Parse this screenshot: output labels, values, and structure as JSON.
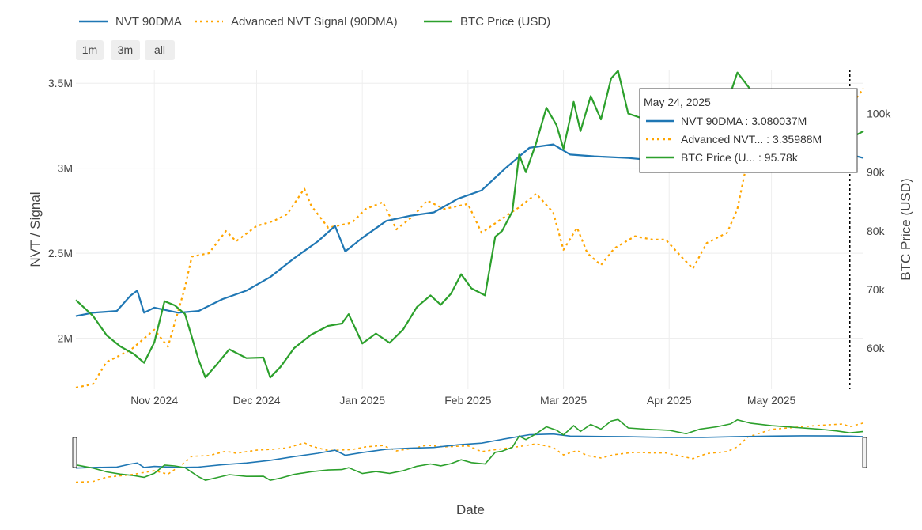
{
  "range_buttons": [
    "1m",
    "3m",
    "all"
  ],
  "chart_data": {
    "type": "line",
    "xlabel": "Date",
    "ylabel": "NVT / Signal",
    "y2label": "BTC Price (USD)",
    "x_range": [
      "2024-10-09",
      "2025-05-28"
    ],
    "y_range": [
      1700000,
      3580000
    ],
    "y2_range": [
      53000,
      107500
    ],
    "x_ticks": [
      {
        "date": "2024-11-01",
        "label": "Nov 2024"
      },
      {
        "date": "2024-12-01",
        "label": "Dec 2024"
      },
      {
        "date": "2025-01-01",
        "label": "Jan 2025"
      },
      {
        "date": "2025-02-01",
        "label": "Feb 2025"
      },
      {
        "date": "2025-03-01",
        "label": "Mar 2025"
      },
      {
        "date": "2025-04-01",
        "label": "Apr 2025"
      },
      {
        "date": "2025-05-01",
        "label": "May 2025"
      }
    ],
    "y_ticks": [
      {
        "value": 2000000,
        "label": "2M"
      },
      {
        "value": 2500000,
        "label": "2.5M"
      },
      {
        "value": 3000000,
        "label": "3M"
      },
      {
        "value": 3500000,
        "label": "3.5M"
      }
    ],
    "y2_ticks": [
      {
        "value": 60000,
        "label": "60k"
      },
      {
        "value": 70000,
        "label": "70k"
      },
      {
        "value": 80000,
        "label": "80k"
      },
      {
        "value": 90000,
        "label": "90k"
      },
      {
        "value": 100000,
        "label": "100k"
      }
    ],
    "legend_position": "top-left",
    "grid": true,
    "series": [
      {
        "name": "NVT 90DMA",
        "axis": "y",
        "color": "#1f77b4",
        "dash": "solid",
        "points": [
          [
            "2024-10-09",
            2130000
          ],
          [
            "2024-10-14",
            2150000
          ],
          [
            "2024-10-21",
            2160000
          ],
          [
            "2024-10-25",
            2250000
          ],
          [
            "2024-10-27",
            2280000
          ],
          [
            "2024-10-29",
            2150000
          ],
          [
            "2024-11-01",
            2180000
          ],
          [
            "2024-11-08",
            2150000
          ],
          [
            "2024-11-14",
            2160000
          ],
          [
            "2024-11-21",
            2230000
          ],
          [
            "2024-11-28",
            2280000
          ],
          [
            "2024-12-05",
            2360000
          ],
          [
            "2024-12-12",
            2470000
          ],
          [
            "2024-12-19",
            2570000
          ],
          [
            "2024-12-24",
            2660000
          ],
          [
            "2024-12-27",
            2510000
          ],
          [
            "2025-01-01",
            2590000
          ],
          [
            "2025-01-08",
            2690000
          ],
          [
            "2025-01-15",
            2720000
          ],
          [
            "2025-01-22",
            2740000
          ],
          [
            "2025-01-29",
            2820000
          ],
          [
            "2025-02-05",
            2870000
          ],
          [
            "2025-02-12",
            3000000
          ],
          [
            "2025-02-19",
            3120000
          ],
          [
            "2025-02-26",
            3140000
          ],
          [
            "2025-03-03",
            3080000
          ],
          [
            "2025-03-10",
            3070000
          ],
          [
            "2025-03-20",
            3060000
          ],
          [
            "2025-03-31",
            3040000
          ],
          [
            "2025-04-10",
            3040000
          ],
          [
            "2025-04-20",
            3060000
          ],
          [
            "2025-05-01",
            3080000
          ],
          [
            "2025-05-10",
            3090000
          ],
          [
            "2025-05-20",
            3085000
          ],
          [
            "2025-05-24",
            3080037
          ],
          [
            "2025-05-28",
            3060000
          ]
        ]
      },
      {
        "name": "Advanced NVT Signal (90DMA)",
        "axis": "y",
        "color": "#ffa500",
        "dash": "dot",
        "points": [
          [
            "2024-10-09",
            1710000
          ],
          [
            "2024-10-14",
            1730000
          ],
          [
            "2024-10-18",
            1860000
          ],
          [
            "2024-10-25",
            1930000
          ],
          [
            "2024-11-01",
            2050000
          ],
          [
            "2024-11-05",
            1950000
          ],
          [
            "2024-11-10",
            2300000
          ],
          [
            "2024-11-12",
            2480000
          ],
          [
            "2024-11-17",
            2500000
          ],
          [
            "2024-11-22",
            2630000
          ],
          [
            "2024-11-25",
            2570000
          ],
          [
            "2024-12-01",
            2660000
          ],
          [
            "2024-12-06",
            2690000
          ],
          [
            "2024-12-10",
            2730000
          ],
          [
            "2024-12-15",
            2880000
          ],
          [
            "2024-12-17",
            2780000
          ],
          [
            "2024-12-22",
            2650000
          ],
          [
            "2024-12-29",
            2680000
          ],
          [
            "2025-01-02",
            2760000
          ],
          [
            "2025-01-07",
            2800000
          ],
          [
            "2025-01-11",
            2640000
          ],
          [
            "2025-01-16",
            2720000
          ],
          [
            "2025-01-20",
            2810000
          ],
          [
            "2025-01-25",
            2760000
          ],
          [
            "2025-02-01",
            2790000
          ],
          [
            "2025-02-05",
            2620000
          ],
          [
            "2025-02-10",
            2690000
          ],
          [
            "2025-02-16",
            2770000
          ],
          [
            "2025-02-21",
            2850000
          ],
          [
            "2025-02-26",
            2740000
          ],
          [
            "2025-03-01",
            2520000
          ],
          [
            "2025-03-05",
            2650000
          ],
          [
            "2025-03-08",
            2500000
          ],
          [
            "2025-03-12",
            2430000
          ],
          [
            "2025-03-16",
            2530000
          ],
          [
            "2025-03-22",
            2600000
          ],
          [
            "2025-03-27",
            2580000
          ],
          [
            "2025-03-31",
            2580000
          ],
          [
            "2025-04-05",
            2470000
          ],
          [
            "2025-04-08",
            2410000
          ],
          [
            "2025-04-12",
            2560000
          ],
          [
            "2025-04-18",
            2620000
          ],
          [
            "2025-04-21",
            2760000
          ],
          [
            "2025-04-24",
            3050000
          ],
          [
            "2025-05-01",
            3280000
          ],
          [
            "2025-05-08",
            3340000
          ],
          [
            "2025-05-15",
            3400000
          ],
          [
            "2025-05-22",
            3440000
          ],
          [
            "2025-05-24",
            3359880
          ],
          [
            "2025-05-28",
            3470000
          ]
        ]
      },
      {
        "name": "BTC Price (USD)",
        "axis": "y2",
        "color": "#2ca02c",
        "dash": "solid",
        "points": [
          [
            "2024-10-09",
            68200
          ],
          [
            "2024-10-14",
            65500
          ],
          [
            "2024-10-18",
            62200
          ],
          [
            "2024-10-22",
            60300
          ],
          [
            "2024-10-26",
            59000
          ],
          [
            "2024-10-29",
            57500
          ],
          [
            "2024-11-01",
            61000
          ],
          [
            "2024-11-04",
            68000
          ],
          [
            "2024-11-07",
            67300
          ],
          [
            "2024-11-10",
            65800
          ],
          [
            "2024-11-14",
            58000
          ],
          [
            "2024-11-16",
            55000
          ],
          [
            "2024-11-19",
            57000
          ],
          [
            "2024-11-23",
            59800
          ],
          [
            "2024-11-28",
            58300
          ],
          [
            "2024-12-03",
            58400
          ],
          [
            "2024-12-05",
            55000
          ],
          [
            "2024-12-08",
            56800
          ],
          [
            "2024-12-12",
            60000
          ],
          [
            "2024-12-17",
            62300
          ],
          [
            "2024-12-22",
            63800
          ],
          [
            "2024-12-26",
            64200
          ],
          [
            "2024-12-28",
            65800
          ],
          [
            "2025-01-01",
            60800
          ],
          [
            "2025-01-05",
            62500
          ],
          [
            "2025-01-09",
            60900
          ],
          [
            "2025-01-13",
            63200
          ],
          [
            "2025-01-17",
            67000
          ],
          [
            "2025-01-21",
            69000
          ],
          [
            "2025-01-24",
            67400
          ],
          [
            "2025-01-27",
            69300
          ],
          [
            "2025-01-30",
            72600
          ],
          [
            "2025-02-02",
            70200
          ],
          [
            "2025-02-06",
            69000
          ],
          [
            "2025-02-09",
            79000
          ],
          [
            "2025-02-11",
            80000
          ],
          [
            "2025-02-14",
            83300
          ],
          [
            "2025-02-16",
            93000
          ],
          [
            "2025-02-18",
            90000
          ],
          [
            "2025-02-21",
            95000
          ],
          [
            "2025-02-24",
            101000
          ],
          [
            "2025-02-27",
            98000
          ],
          [
            "2025-03-01",
            94000
          ],
          [
            "2025-03-04",
            102000
          ],
          [
            "2025-03-06",
            97000
          ],
          [
            "2025-03-09",
            103000
          ],
          [
            "2025-03-12",
            99000
          ],
          [
            "2025-03-15",
            106000
          ],
          [
            "2025-03-17",
            107300
          ],
          [
            "2025-03-20",
            100000
          ],
          [
            "2025-03-25",
            99000
          ],
          [
            "2025-04-01",
            98000
          ],
          [
            "2025-04-06",
            95000
          ],
          [
            "2025-04-10",
            99000
          ],
          [
            "2025-04-15",
            101000
          ],
          [
            "2025-04-19",
            103500
          ],
          [
            "2025-04-21",
            107000
          ],
          [
            "2025-04-25",
            104000
          ],
          [
            "2025-05-01",
            102000
          ],
          [
            "2025-05-08",
            100500
          ],
          [
            "2025-05-15",
            99000
          ],
          [
            "2025-05-20",
            97500
          ],
          [
            "2025-05-24",
            95780
          ],
          [
            "2025-05-28",
            97000
          ]
        ]
      }
    ],
    "hover": {
      "date_label": "May 24, 2025",
      "date": "2025-05-24",
      "entries": [
        {
          "label": "NVT 90DMA : 3.080037M",
          "color": "#1f77b4",
          "dash": "solid"
        },
        {
          "label": "Advanced NVT... : 3.35988M",
          "color": "#ffa500",
          "dash": "dot"
        },
        {
          "label": "BTC Price (U... : 95.78k",
          "color": "#2ca02c",
          "dash": "solid"
        }
      ]
    },
    "range_slider": true
  }
}
